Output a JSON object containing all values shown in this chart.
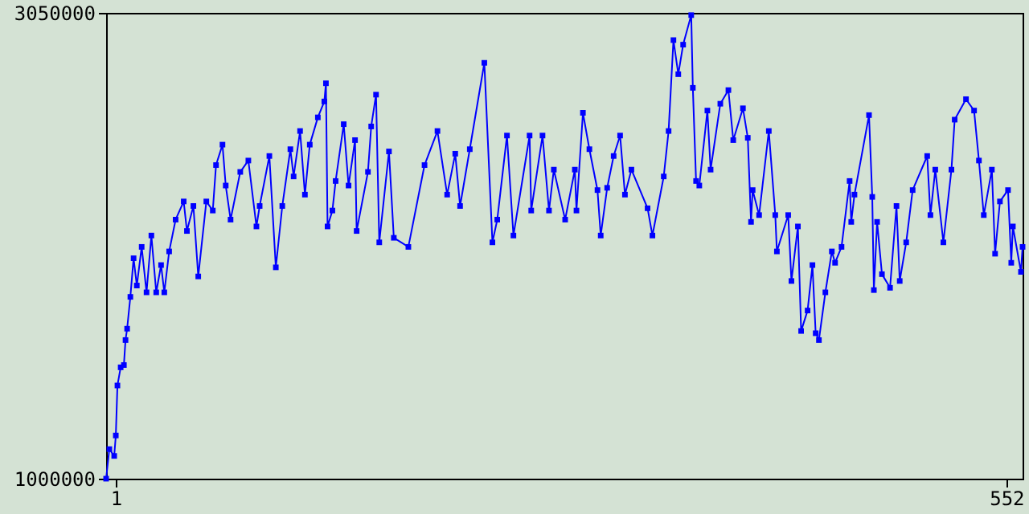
{
  "chart_data": {
    "type": "line",
    "marker": "square",
    "grid": false,
    "xlim": [
      -5,
      562
    ],
    "xticks": [
      1,
      552
    ],
    "ylim": [
      1000000,
      3050000
    ],
    "yticks": [
      1000000,
      3050000
    ],
    "x": [
      -5,
      -3,
      0,
      1,
      2,
      4,
      6,
      7,
      8,
      10,
      12,
      14,
      17,
      20,
      23,
      26,
      29,
      31,
      34,
      38,
      43,
      45,
      49,
      52,
      57,
      61,
      63,
      67,
      69,
      72,
      78,
      83,
      88,
      90,
      96,
      100,
      104,
      109,
      111,
      115,
      118,
      121,
      126,
      130,
      131,
      132,
      135,
      137,
      142,
      145,
      149,
      150,
      157,
      159,
      162,
      164,
      170,
      173,
      182,
      192,
      200,
      206,
      211,
      214,
      220,
      229,
      234,
      237,
      243,
      247,
      257,
      258,
      265,
      269,
      272,
      279,
      285,
      286,
      290,
      294,
      299,
      301,
      305,
      309,
      313,
      316,
      320,
      330,
      333,
      340,
      343,
      346,
      349,
      352,
      357,
      358,
      360,
      362,
      367,
      369,
      375,
      380,
      383,
      389,
      392,
      394,
      395,
      399,
      405,
      409,
      410,
      417,
      419,
      423,
      425,
      429,
      432,
      434,
      436,
      440,
      444,
      446,
      450,
      455,
      456,
      458,
      467,
      469,
      470,
      472,
      475,
      480,
      484,
      486,
      490,
      494,
      503,
      505,
      508,
      513,
      518,
      520,
      527,
      532,
      535,
      538,
      543,
      545,
      548,
      553,
      555,
      556,
      561,
      562
    ],
    "series": [
      {
        "color": "#0000ff",
        "values": [
          1000000,
          1130000,
          1100000,
          1190000,
          1410000,
          1490000,
          1500000,
          1610000,
          1660000,
          1800000,
          1970000,
          1850000,
          2020000,
          1820000,
          2070000,
          1820000,
          1940000,
          1820000,
          2000000,
          2140000,
          2220000,
          2090000,
          2200000,
          1890000,
          2220000,
          2180000,
          2380000,
          2470000,
          2290000,
          2140000,
          2350000,
          2400000,
          2110000,
          2200000,
          2420000,
          1930000,
          2200000,
          2450000,
          2330000,
          2530000,
          2250000,
          2470000,
          2590000,
          2660000,
          2740000,
          2110000,
          2180000,
          2310000,
          2560000,
          2290000,
          2490000,
          2090000,
          2350000,
          2550000,
          2690000,
          2040000,
          2440000,
          2060000,
          2020000,
          2380000,
          2530000,
          2250000,
          2430000,
          2200000,
          2450000,
          2830000,
          2040000,
          2140000,
          2510000,
          2070000,
          2510000,
          2180000,
          2510000,
          2180000,
          2360000,
          2140000,
          2360000,
          2180000,
          2610000,
          2450000,
          2270000,
          2070000,
          2280000,
          2420000,
          2510000,
          2250000,
          2360000,
          2190000,
          2070000,
          2330000,
          2530000,
          2930000,
          2780000,
          2910000,
          3040000,
          2720000,
          2310000,
          2290000,
          2620000,
          2360000,
          2650000,
          2710000,
          2490000,
          2630000,
          2500000,
          2130000,
          2270000,
          2160000,
          2530000,
          2160000,
          2000000,
          2160000,
          1870000,
          2110000,
          1650000,
          1740000,
          1940000,
          1640000,
          1610000,
          1820000,
          2000000,
          1950000,
          2020000,
          2310000,
          2130000,
          2250000,
          2600000,
          2240000,
          1830000,
          2130000,
          1900000,
          1840000,
          2200000,
          1870000,
          2040000,
          2270000,
          2420000,
          2160000,
          2360000,
          2040000,
          2360000,
          2580000,
          2670000,
          2620000,
          2400000,
          2160000,
          2360000,
          1990000,
          2220000,
          2270000,
          1950000,
          2110000,
          1910000,
          2020000
        ]
      }
    ]
  }
}
